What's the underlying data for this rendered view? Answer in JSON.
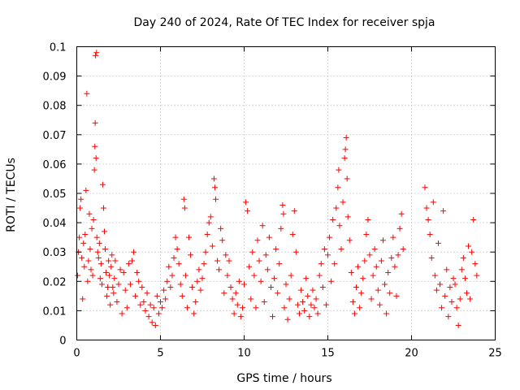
{
  "chart_data": {
    "type": "scatter",
    "title": "Day 240 of 2024, Rate Of TEC Index for receiver spja",
    "xlabel": "GPS time / hours",
    "ylabel": "ROTI / TECUs",
    "xlim": [
      0,
      25
    ],
    "ylim": [
      0,
      0.1
    ],
    "xticks": [
      0,
      5,
      10,
      15,
      20,
      25
    ],
    "xtick_labels": [
      "0",
      "5",
      "10",
      "15",
      "20",
      "25"
    ],
    "yticks": [
      0,
      0.01,
      0.02,
      0.03,
      0.04,
      0.05,
      0.06,
      0.07,
      0.08,
      0.09,
      0.1
    ],
    "ytick_labels": [
      "0",
      "0.01",
      "0.02",
      "0.03",
      "0.04",
      "0.05",
      "0.06",
      "0.07",
      "0.08",
      "0.09",
      "0.1"
    ],
    "grid": true,
    "marker": "+",
    "color": "#ff0000",
    "series": [
      {
        "name": "ROTI",
        "points": [
          [
            0.05,
            0.022
          ],
          [
            0.1,
            0.03
          ],
          [
            0.15,
            0.035
          ],
          [
            0.2,
            0.045
          ],
          [
            0.25,
            0.048
          ],
          [
            0.3,
            0.028
          ],
          [
            0.35,
            0.014
          ],
          [
            0.4,
            0.033
          ],
          [
            0.45,
            0.025
          ],
          [
            0.5,
            0.036
          ],
          [
            0.55,
            0.051
          ],
          [
            0.6,
            0.084
          ],
          [
            0.65,
            0.02
          ],
          [
            0.7,
            0.027
          ],
          [
            0.75,
            0.043
          ],
          [
            0.8,
            0.031
          ],
          [
            0.85,
            0.024
          ],
          [
            0.9,
            0.038
          ],
          [
            0.95,
            0.022
          ],
          [
            1.0,
            0.041
          ],
          [
            1.05,
            0.058
          ],
          [
            1.08,
            0.066
          ],
          [
            1.1,
            0.074
          ],
          [
            1.12,
            0.097
          ],
          [
            1.15,
            0.062
          ],
          [
            1.18,
            0.098
          ],
          [
            1.2,
            0.035
          ],
          [
            1.25,
            0.03
          ],
          [
            1.3,
            0.028
          ],
          [
            1.35,
            0.033
          ],
          [
            1.4,
            0.021
          ],
          [
            1.45,
            0.026
          ],
          [
            1.5,
            0.019
          ],
          [
            1.55,
            0.053
          ],
          [
            1.6,
            0.045
          ],
          [
            1.65,
            0.037
          ],
          [
            1.7,
            0.031
          ],
          [
            1.75,
            0.023
          ],
          [
            1.8,
            0.015
          ],
          [
            1.85,
            0.018
          ],
          [
            1.9,
            0.027
          ],
          [
            1.95,
            0.022
          ],
          [
            2.0,
            0.012
          ],
          [
            2.05,
            0.025
          ],
          [
            2.1,
            0.029
          ],
          [
            2.15,
            0.018
          ],
          [
            2.2,
            0.016
          ],
          [
            2.25,
            0.021
          ],
          [
            2.3,
            0.027
          ],
          [
            2.4,
            0.013
          ],
          [
            2.5,
            0.019
          ],
          [
            2.6,
            0.024
          ],
          [
            2.7,
            0.009
          ],
          [
            2.8,
            0.023
          ],
          [
            2.9,
            0.017
          ],
          [
            3.0,
            0.011
          ],
          [
            3.1,
            0.026
          ],
          [
            3.2,
            0.019
          ],
          [
            3.3,
            0.027
          ],
          [
            3.4,
            0.03
          ],
          [
            3.5,
            0.015
          ],
          [
            3.6,
            0.023
          ],
          [
            3.7,
            0.02
          ],
          [
            3.8,
            0.012
          ],
          [
            3.9,
            0.018
          ],
          [
            4.0,
            0.013
          ],
          [
            4.1,
            0.01
          ],
          [
            4.2,
            0.016
          ],
          [
            4.3,
            0.008
          ],
          [
            4.4,
            0.012
          ],
          [
            4.5,
            0.006
          ],
          [
            4.6,
            0.011
          ],
          [
            4.7,
            0.005
          ],
          [
            4.8,
            0.015
          ],
          [
            4.9,
            0.009
          ],
          [
            5.0,
            0.013
          ],
          [
            5.1,
            0.011
          ],
          [
            5.2,
            0.017
          ],
          [
            5.3,
            0.014
          ],
          [
            5.4,
            0.02
          ],
          [
            5.5,
            0.025
          ],
          [
            5.6,
            0.018
          ],
          [
            5.7,
            0.022
          ],
          [
            5.8,
            0.028
          ],
          [
            5.9,
            0.035
          ],
          [
            6.0,
            0.031
          ],
          [
            6.1,
            0.026
          ],
          [
            6.2,
            0.019
          ],
          [
            6.3,
            0.015
          ],
          [
            6.4,
            0.048
          ],
          [
            6.45,
            0.045
          ],
          [
            6.5,
            0.022
          ],
          [
            6.6,
            0.011
          ],
          [
            6.7,
            0.035
          ],
          [
            6.8,
            0.029
          ],
          [
            6.9,
            0.018
          ],
          [
            7.0,
            0.009
          ],
          [
            7.1,
            0.013
          ],
          [
            7.2,
            0.02
          ],
          [
            7.3,
            0.024
          ],
          [
            7.4,
            0.017
          ],
          [
            7.5,
            0.021
          ],
          [
            7.6,
            0.026
          ],
          [
            7.7,
            0.03
          ],
          [
            7.8,
            0.036
          ],
          [
            7.9,
            0.04
          ],
          [
            8.0,
            0.042
          ],
          [
            8.1,
            0.032
          ],
          [
            8.2,
            0.055
          ],
          [
            8.25,
            0.052
          ],
          [
            8.3,
            0.048
          ],
          [
            8.4,
            0.027
          ],
          [
            8.5,
            0.024
          ],
          [
            8.6,
            0.038
          ],
          [
            8.7,
            0.034
          ],
          [
            8.8,
            0.016
          ],
          [
            8.9,
            0.029
          ],
          [
            9.0,
            0.022
          ],
          [
            9.1,
            0.027
          ],
          [
            9.2,
            0.018
          ],
          [
            9.3,
            0.014
          ],
          [
            9.4,
            0.009
          ],
          [
            9.5,
            0.016
          ],
          [
            9.6,
            0.012
          ],
          [
            9.7,
            0.02
          ],
          [
            9.8,
            0.008
          ],
          [
            9.9,
            0.011
          ],
          [
            10.0,
            0.019
          ],
          [
            10.1,
            0.047
          ],
          [
            10.2,
            0.044
          ],
          [
            10.3,
            0.025
          ],
          [
            10.4,
            0.014
          ],
          [
            10.5,
            0.03
          ],
          [
            10.6,
            0.022
          ],
          [
            10.7,
            0.011
          ],
          [
            10.8,
            0.034
          ],
          [
            10.9,
            0.027
          ],
          [
            11.0,
            0.02
          ],
          [
            11.1,
            0.039
          ],
          [
            11.2,
            0.013
          ],
          [
            11.3,
            0.029
          ],
          [
            11.4,
            0.024
          ],
          [
            11.5,
            0.035
          ],
          [
            11.6,
            0.018
          ],
          [
            11.7,
            0.008
          ],
          [
            11.8,
            0.021
          ],
          [
            11.9,
            0.031
          ],
          [
            12.0,
            0.016
          ],
          [
            12.1,
            0.026
          ],
          [
            12.2,
            0.038
          ],
          [
            12.3,
            0.046
          ],
          [
            12.35,
            0.043
          ],
          [
            12.4,
            0.011
          ],
          [
            12.5,
            0.019
          ],
          [
            12.6,
            0.007
          ],
          [
            12.7,
            0.014
          ],
          [
            12.8,
            0.022
          ],
          [
            12.9,
            0.036
          ],
          [
            13.0,
            0.044
          ],
          [
            13.1,
            0.03
          ],
          [
            13.2,
            0.012
          ],
          [
            13.3,
            0.009
          ],
          [
            13.4,
            0.017
          ],
          [
            13.5,
            0.013
          ],
          [
            13.6,
            0.01
          ],
          [
            13.7,
            0.021
          ],
          [
            13.8,
            0.015
          ],
          [
            13.9,
            0.008
          ],
          [
            14.0,
            0.012
          ],
          [
            14.1,
            0.017
          ],
          [
            14.2,
            0.011
          ],
          [
            14.3,
            0.014
          ],
          [
            14.4,
            0.009
          ],
          [
            14.5,
            0.022
          ],
          [
            14.6,
            0.026
          ],
          [
            14.7,
            0.018
          ],
          [
            14.8,
            0.031
          ],
          [
            14.9,
            0.012
          ],
          [
            15.0,
            0.029
          ],
          [
            15.1,
            0.035
          ],
          [
            15.2,
            0.02
          ],
          [
            15.3,
            0.041
          ],
          [
            15.4,
            0.026
          ],
          [
            15.5,
            0.045
          ],
          [
            15.6,
            0.052
          ],
          [
            15.65,
            0.058
          ],
          [
            15.7,
            0.039
          ],
          [
            15.8,
            0.031
          ],
          [
            15.9,
            0.047
          ],
          [
            16.0,
            0.062
          ],
          [
            16.05,
            0.065
          ],
          [
            16.1,
            0.069
          ],
          [
            16.15,
            0.055
          ],
          [
            16.2,
            0.042
          ],
          [
            16.3,
            0.034
          ],
          [
            16.4,
            0.023
          ],
          [
            16.5,
            0.013
          ],
          [
            16.6,
            0.009
          ],
          [
            16.7,
            0.018
          ],
          [
            16.8,
            0.025
          ],
          [
            16.9,
            0.011
          ],
          [
            17.0,
            0.016
          ],
          [
            17.1,
            0.021
          ],
          [
            17.2,
            0.027
          ],
          [
            17.3,
            0.036
          ],
          [
            17.4,
            0.041
          ],
          [
            17.5,
            0.029
          ],
          [
            17.6,
            0.014
          ],
          [
            17.7,
            0.022
          ],
          [
            17.8,
            0.031
          ],
          [
            17.9,
            0.025
          ],
          [
            18.0,
            0.017
          ],
          [
            18.1,
            0.012
          ],
          [
            18.2,
            0.027
          ],
          [
            18.3,
            0.034
          ],
          [
            18.4,
            0.019
          ],
          [
            18.5,
            0.009
          ],
          [
            18.6,
            0.023
          ],
          [
            18.7,
            0.016
          ],
          [
            18.8,
            0.028
          ],
          [
            18.9,
            0.035
          ],
          [
            19.0,
            0.025
          ],
          [
            19.1,
            0.015
          ],
          [
            19.2,
            0.029
          ],
          [
            19.3,
            0.038
          ],
          [
            19.4,
            0.043
          ],
          [
            19.5,
            0.031
          ],
          [
            20.8,
            0.052
          ],
          [
            20.9,
            0.045
          ],
          [
            21.0,
            0.041
          ],
          [
            21.1,
            0.036
          ],
          [
            21.2,
            0.028
          ],
          [
            21.3,
            0.047
          ],
          [
            21.4,
            0.022
          ],
          [
            21.5,
            0.017
          ],
          [
            21.6,
            0.033
          ],
          [
            21.7,
            0.019
          ],
          [
            21.8,
            0.011
          ],
          [
            21.9,
            0.044
          ],
          [
            22.0,
            0.015
          ],
          [
            22.1,
            0.024
          ],
          [
            22.2,
            0.008
          ],
          [
            22.3,
            0.018
          ],
          [
            22.4,
            0.013
          ],
          [
            22.5,
            0.021
          ],
          [
            22.6,
            0.019
          ],
          [
            22.7,
            0.011
          ],
          [
            22.8,
            0.005
          ],
          [
            22.9,
            0.014
          ],
          [
            23.0,
            0.024
          ],
          [
            23.1,
            0.028
          ],
          [
            23.2,
            0.021
          ],
          [
            23.3,
            0.016
          ],
          [
            23.4,
            0.032
          ],
          [
            23.5,
            0.014
          ],
          [
            23.6,
            0.03
          ],
          [
            23.7,
            0.041
          ],
          [
            23.8,
            0.026
          ],
          [
            23.9,
            0.022
          ]
        ]
      }
    ]
  }
}
